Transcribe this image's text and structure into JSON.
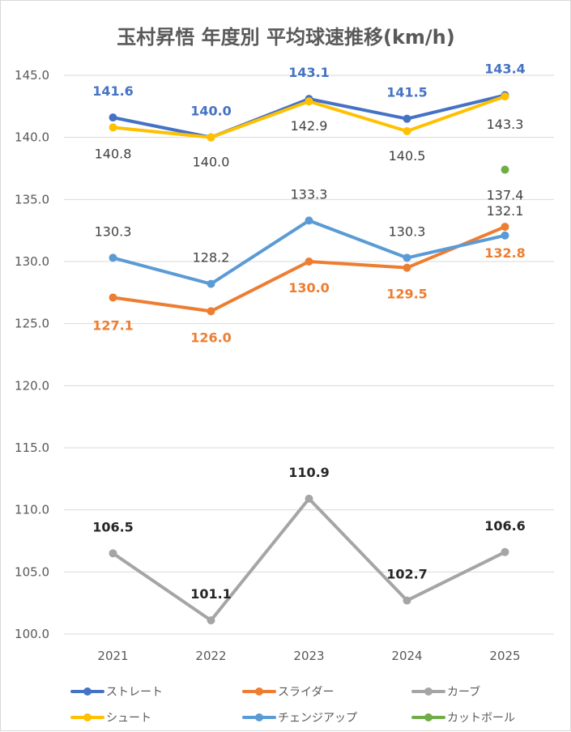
{
  "chart_data": {
    "type": "line",
    "title": "玉村昇悟 年度別 平均球速推移(km/h)",
    "xlabel": "",
    "ylabel": "",
    "categories": [
      "2021",
      "2022",
      "2023",
      "2024",
      "2025"
    ],
    "ylim": [
      100.0,
      145.0
    ],
    "yticks": [
      "100.0",
      "105.0",
      "110.0",
      "115.0",
      "120.0",
      "125.0",
      "130.0",
      "135.0",
      "140.0",
      "145.0"
    ],
    "grid": true,
    "legend_position": "bottom",
    "series": [
      {
        "name": "ストレート",
        "color": "#4472c4",
        "values": [
          141.6,
          140.0,
          143.1,
          141.5,
          143.4
        ],
        "labels": [
          "141.6",
          "140.0",
          "143.1",
          "141.5",
          "143.4"
        ]
      },
      {
        "name": "スライダー",
        "color": "#ed7d31",
        "values": [
          127.1,
          126.0,
          130.0,
          129.5,
          132.8
        ],
        "labels": [
          "127.1",
          "126.0",
          "130.0",
          "129.5",
          "132.8"
        ]
      },
      {
        "name": "カーブ",
        "color": "#a5a5a5",
        "values": [
          106.5,
          101.1,
          110.9,
          102.7,
          106.6
        ],
        "labels": [
          "106.5",
          "101.1",
          "110.9",
          "102.7",
          "106.6"
        ]
      },
      {
        "name": "シュート",
        "color": "#ffc000",
        "values": [
          140.8,
          140.0,
          142.9,
          140.5,
          143.3
        ],
        "labels": [
          "140.8",
          "140.0",
          "142.9",
          "140.5",
          "143.3"
        ]
      },
      {
        "name": "チェンジアップ",
        "color": "#5b9bd5",
        "values": [
          130.3,
          128.2,
          133.3,
          130.3,
          132.1
        ],
        "labels": [
          "130.3",
          "128.2",
          "133.3",
          "130.3",
          "132.1"
        ]
      },
      {
        "name": "カットボール",
        "color": "#70ad47",
        "values": [
          null,
          null,
          null,
          null,
          137.4
        ],
        "labels": [
          "",
          "",
          "",
          "",
          "137.4"
        ]
      }
    ]
  }
}
